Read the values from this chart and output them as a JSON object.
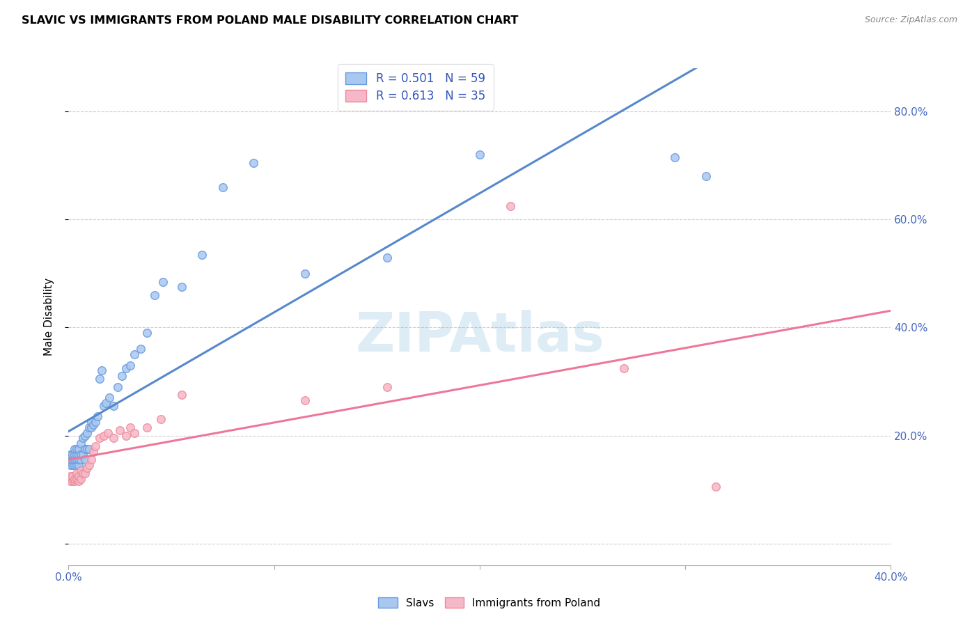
{
  "title": "SLAVIC VS IMMIGRANTS FROM POLAND MALE DISABILITY CORRELATION CHART",
  "source": "Source: ZipAtlas.com",
  "ylabel": "Male Disability",
  "xlim": [
    0.0,
    0.4
  ],
  "ylim": [
    -0.04,
    0.88
  ],
  "blue_R": 0.501,
  "blue_N": 59,
  "pink_R": 0.613,
  "pink_N": 35,
  "blue_color": "#A8C8F0",
  "pink_color": "#F5B8C8",
  "blue_edge_color": "#6699DD",
  "pink_edge_color": "#EE8899",
  "blue_line_color": "#5588CC",
  "pink_line_color": "#EE7799",
  "watermark": "ZIPAtlas",
  "slavs_x": [
    0.001,
    0.001,
    0.001,
    0.002,
    0.002,
    0.002,
    0.003,
    0.003,
    0.003,
    0.003,
    0.004,
    0.004,
    0.004,
    0.004,
    0.005,
    0.005,
    0.005,
    0.005,
    0.006,
    0.006,
    0.006,
    0.007,
    0.007,
    0.008,
    0.008,
    0.008,
    0.009,
    0.009,
    0.01,
    0.01,
    0.011,
    0.011,
    0.012,
    0.013,
    0.014,
    0.015,
    0.016,
    0.017,
    0.018,
    0.02,
    0.022,
    0.024,
    0.026,
    0.028,
    0.03,
    0.032,
    0.035,
    0.038,
    0.042,
    0.046,
    0.055,
    0.065,
    0.075,
    0.09,
    0.115,
    0.155,
    0.2,
    0.295,
    0.31
  ],
  "slavs_y": [
    0.145,
    0.155,
    0.165,
    0.145,
    0.155,
    0.165,
    0.145,
    0.155,
    0.165,
    0.175,
    0.145,
    0.155,
    0.165,
    0.175,
    0.145,
    0.155,
    0.165,
    0.175,
    0.155,
    0.165,
    0.185,
    0.165,
    0.195,
    0.155,
    0.175,
    0.2,
    0.175,
    0.205,
    0.175,
    0.215,
    0.215,
    0.225,
    0.22,
    0.225,
    0.235,
    0.305,
    0.32,
    0.255,
    0.26,
    0.27,
    0.255,
    0.29,
    0.31,
    0.325,
    0.33,
    0.35,
    0.36,
    0.39,
    0.46,
    0.485,
    0.475,
    0.535,
    0.66,
    0.705,
    0.5,
    0.53,
    0.72,
    0.715,
    0.68
  ],
  "poland_x": [
    0.001,
    0.001,
    0.002,
    0.002,
    0.003,
    0.003,
    0.004,
    0.004,
    0.005,
    0.005,
    0.006,
    0.006,
    0.007,
    0.008,
    0.009,
    0.01,
    0.011,
    0.012,
    0.013,
    0.015,
    0.017,
    0.019,
    0.022,
    0.025,
    0.028,
    0.03,
    0.032,
    0.038,
    0.045,
    0.055,
    0.115,
    0.155,
    0.215,
    0.27,
    0.315
  ],
  "poland_y": [
    0.115,
    0.125,
    0.115,
    0.125,
    0.115,
    0.12,
    0.12,
    0.13,
    0.115,
    0.125,
    0.12,
    0.135,
    0.13,
    0.13,
    0.14,
    0.145,
    0.155,
    0.17,
    0.18,
    0.195,
    0.2,
    0.205,
    0.195,
    0.21,
    0.2,
    0.215,
    0.205,
    0.215,
    0.23,
    0.275,
    0.265,
    0.29,
    0.625,
    0.325,
    0.105
  ]
}
